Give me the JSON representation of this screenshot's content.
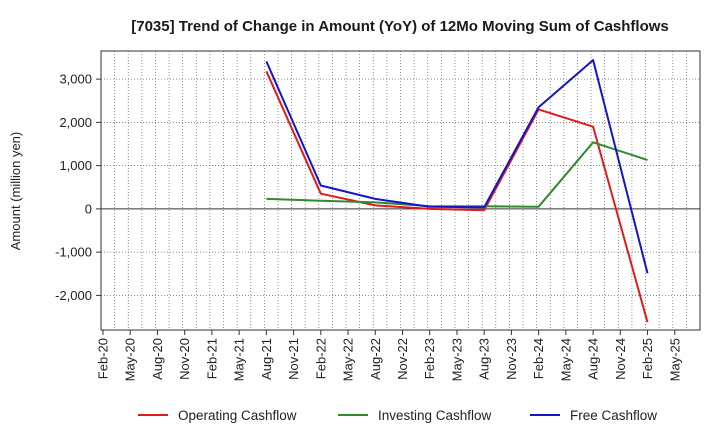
{
  "chart_data": {
    "type": "line",
    "title": "[7035]  Trend of Change in Amount (YoY) of 12Mo Moving Sum of Cashflows",
    "xlabel": "",
    "ylabel": "Amount (million yen)",
    "categories": [
      "Feb-20",
      "May-20",
      "Aug-20",
      "Nov-20",
      "Feb-21",
      "May-21",
      "Aug-21",
      "Nov-21",
      "Feb-22",
      "May-22",
      "Aug-22",
      "Nov-22",
      "Feb-23",
      "May-23",
      "Aug-23",
      "Nov-23",
      "Feb-24",
      "May-24",
      "Aug-24",
      "Nov-24",
      "Feb-25",
      "May-25"
    ],
    "ylim": [
      -2800,
      3650
    ],
    "yticks": [
      -2000,
      -1000,
      0,
      1000,
      2000,
      3000
    ],
    "ytick_labels": [
      "-2,000",
      "-1,000",
      "0",
      "1,000",
      "2,000",
      "3,000"
    ],
    "grid": true,
    "legend_position": "bottom",
    "series": [
      {
        "name": "Operating Cashflow",
        "color": "#e31a1c",
        "values": [
          null,
          null,
          null,
          null,
          null,
          null,
          3180,
          null,
          350,
          null,
          80,
          null,
          0,
          null,
          -30,
          null,
          2300,
          null,
          1900,
          null,
          -2620,
          null
        ]
      },
      {
        "name": "Investing Cashflow",
        "color": "#2e8b2e",
        "values": [
          null,
          null,
          null,
          null,
          null,
          null,
          230,
          null,
          190,
          null,
          150,
          null,
          60,
          null,
          60,
          null,
          50,
          null,
          1540,
          null,
          1130,
          null
        ]
      },
      {
        "name": "Free Cashflow",
        "color": "#1414c8",
        "values": [
          null,
          null,
          null,
          null,
          null,
          null,
          3410,
          null,
          540,
          null,
          230,
          null,
          50,
          null,
          40,
          null,
          2350,
          null,
          3440,
          null,
          -1490,
          null
        ]
      }
    ]
  }
}
